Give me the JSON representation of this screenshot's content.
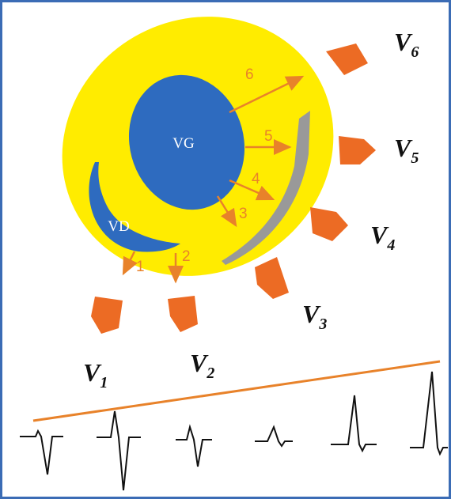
{
  "chambers": {
    "left": "VG",
    "right": "VD"
  },
  "arrows": [
    "1",
    "2",
    "3",
    "4",
    "5",
    "6"
  ],
  "electrodes": [
    {
      "letter": "V",
      "index": "1"
    },
    {
      "letter": "V",
      "index": "2"
    },
    {
      "letter": "V",
      "index": "3"
    },
    {
      "letter": "V",
      "index": "4"
    },
    {
      "letter": "V",
      "index": "5"
    },
    {
      "letter": "V",
      "index": "6"
    }
  ]
}
